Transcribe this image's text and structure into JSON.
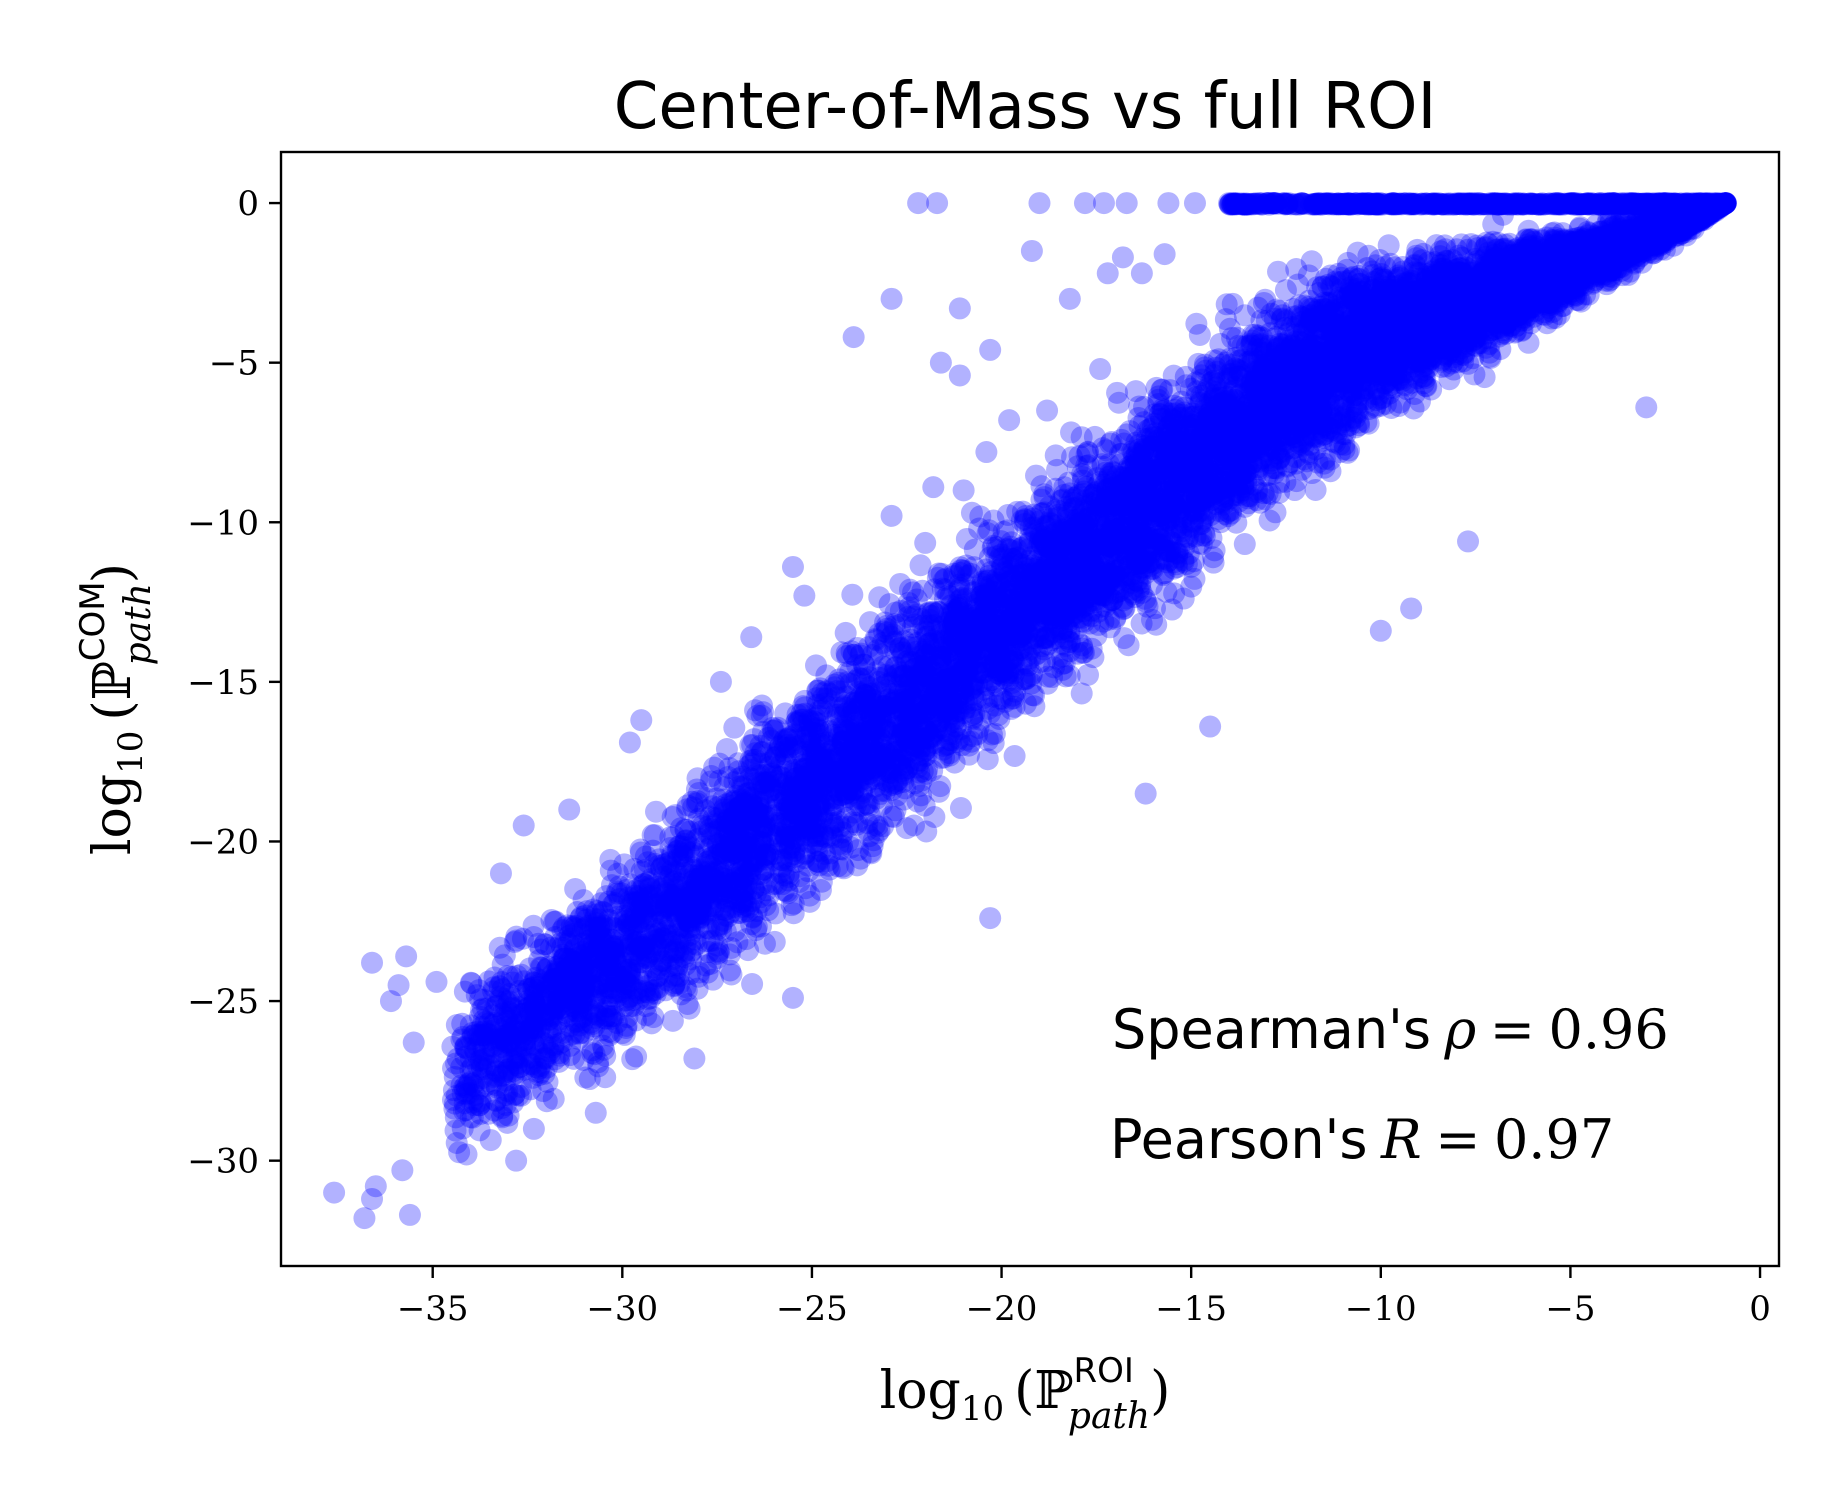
{
  "chart_data": {
    "type": "scatter",
    "title": "Center-of-Mass vs full ROI",
    "xlabel": {
      "prefix": "log",
      "base": "10",
      "symbol": "ℙ",
      "superscript": "ROI",
      "subscript": "path"
    },
    "ylabel": {
      "prefix": "log",
      "base": "10",
      "symbol": "ℙ",
      "superscript": "COM",
      "subscript": "path"
    },
    "xlim": [
      -39,
      0.5
    ],
    "ylim": [
      -33.3,
      1.6
    ],
    "xticks": [
      -35,
      -30,
      -25,
      -20,
      -15,
      -10,
      -5,
      0
    ],
    "yticks": [
      0,
      -5,
      -10,
      -15,
      -20,
      -25,
      -30
    ],
    "xtick_labels": [
      "−35",
      "−30",
      "−25",
      "−20",
      "−15",
      "−10",
      "−5",
      "0"
    ],
    "ytick_labels": [
      "0",
      "−5",
      "−10",
      "−15",
      "−20",
      "−25",
      "−30"
    ],
    "grid": false,
    "marker_color": "#0000ff",
    "marker_alpha": 0.3,
    "annotations": {
      "spearman": {
        "label": "Spearman's",
        "symbol": "ρ",
        "equals": "=",
        "value": "0.96"
      },
      "pearson": {
        "label": "Pearson's",
        "symbol": "R",
        "equals": "=",
        "value": "0.97"
      }
    },
    "density_band": [
      {
        "x": -34.5,
        "y_low": -31.2,
        "y_high": -23.5
      },
      {
        "x": -32,
        "y_low": -29.8,
        "y_high": -20.5
      },
      {
        "x": -29,
        "y_low": -27.5,
        "y_high": -17.5
      },
      {
        "x": -26,
        "y_low": -25.0,
        "y_high": -13.5
      },
      {
        "x": -23,
        "y_low": -22.0,
        "y_high": -10.5
      },
      {
        "x": -20,
        "y_low": -18.5,
        "y_high": -8.0
      },
      {
        "x": -17,
        "y_low": -15.5,
        "y_high": -5.0
      },
      {
        "x": -14,
        "y_low": -12.5,
        "y_high": -2.0
      },
      {
        "x": -11,
        "y_low": -9.5,
        "y_high": 0
      },
      {
        "x": -8,
        "y_low": -6.5,
        "y_high": 0
      },
      {
        "x": -5,
        "y_low": -4.0,
        "y_high": 0
      },
      {
        "x": -2,
        "y_low": -1.2,
        "y_high": 0
      },
      {
        "x": -0.9,
        "y_low": 0,
        "y_high": 0
      }
    ],
    "outliers": [
      {
        "x": -37.6,
        "y": -31.0
      },
      {
        "x": -36.8,
        "y": -31.8
      },
      {
        "x": -36.6,
        "y": -31.2
      },
      {
        "x": -35.6,
        "y": -31.7
      },
      {
        "x": -36.5,
        "y": -30.8
      },
      {
        "x": -35.8,
        "y": -30.3
      },
      {
        "x": -36.6,
        "y": -23.8
      },
      {
        "x": -35.7,
        "y": -23.6
      },
      {
        "x": -35.9,
        "y": -24.5
      },
      {
        "x": -36.1,
        "y": -25.0
      },
      {
        "x": -35.5,
        "y": -26.3
      },
      {
        "x": -34.9,
        "y": -24.4
      },
      {
        "x": -33.2,
        "y": -21.0
      },
      {
        "x": -32.6,
        "y": -19.5
      },
      {
        "x": -31.4,
        "y": -19.0
      },
      {
        "x": -29.5,
        "y": -16.2
      },
      {
        "x": -29.8,
        "y": -16.9
      },
      {
        "x": -27.4,
        "y": -15.0
      },
      {
        "x": -26.6,
        "y": -13.6
      },
      {
        "x": -25.5,
        "y": -11.4
      },
      {
        "x": -25.2,
        "y": -12.3
      },
      {
        "x": -22.9,
        "y": -9.8
      },
      {
        "x": -21.8,
        "y": -8.9
      },
      {
        "x": -21.0,
        "y": -9.0
      },
      {
        "x": -20.4,
        "y": -7.8
      },
      {
        "x": -19.8,
        "y": -6.8
      },
      {
        "x": -18.8,
        "y": -6.5
      },
      {
        "x": -17.4,
        "y": -5.2
      },
      {
        "x": -23.9,
        "y": -4.2
      },
      {
        "x": -22.9,
        "y": -3.0
      },
      {
        "x": -21.1,
        "y": -3.3
      },
      {
        "x": -21.6,
        "y": -5.0
      },
      {
        "x": -21.1,
        "y": -5.4
      },
      {
        "x": -20.3,
        "y": -4.6
      },
      {
        "x": -19.2,
        "y": -1.5
      },
      {
        "x": -18.2,
        "y": -3.0
      },
      {
        "x": -17.2,
        "y": -2.2
      },
      {
        "x": -16.8,
        "y": -1.7
      },
      {
        "x": -16.3,
        "y": -2.2
      },
      {
        "x": -15.7,
        "y": -1.6
      },
      {
        "x": -22.2,
        "y": 0
      },
      {
        "x": -21.7,
        "y": 0
      },
      {
        "x": -19.0,
        "y": 0
      },
      {
        "x": -17.8,
        "y": 0
      },
      {
        "x": -17.3,
        "y": 0
      },
      {
        "x": -16.7,
        "y": 0
      },
      {
        "x": -15.6,
        "y": 0
      },
      {
        "x": -14.9,
        "y": 0
      },
      {
        "x": -14.0,
        "y": 0
      },
      {
        "x": -3.0,
        "y": -6.4
      },
      {
        "x": -2.6,
        "y": -1.3
      },
      {
        "x": -1.8,
        "y": -0.5
      },
      {
        "x": -9.2,
        "y": -12.7
      },
      {
        "x": -7.7,
        "y": -10.6
      },
      {
        "x": -10.0,
        "y": -13.4
      },
      {
        "x": -14.5,
        "y": -16.4
      },
      {
        "x": -16.2,
        "y": -18.5
      },
      {
        "x": -20.3,
        "y": -22.4
      },
      {
        "x": -25.5,
        "y": -24.9
      },
      {
        "x": -28.1,
        "y": -26.8
      },
      {
        "x": -30.7,
        "y": -28.5
      },
      {
        "x": -32.8,
        "y": -30.0
      }
    ]
  }
}
